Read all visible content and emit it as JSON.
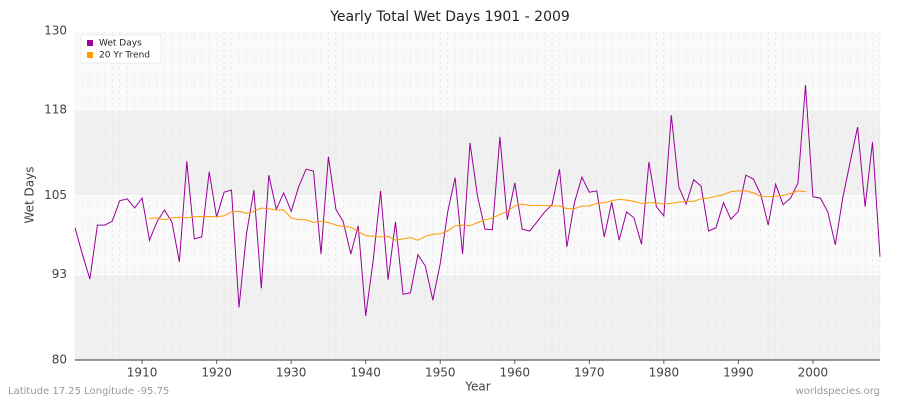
{
  "chart_data": {
    "type": "line",
    "title": "Yearly Total Wet Days 1901 - 2009",
    "x_label": "Year",
    "y_label": "Wet Days",
    "footer_left": "Latitude 17.25 Longitude -95.75",
    "footer_right": "worldspecies.org",
    "x": [
      1901,
      1902,
      1903,
      1904,
      1905,
      1906,
      1907,
      1908,
      1909,
      1910,
      1911,
      1912,
      1913,
      1914,
      1915,
      1916,
      1917,
      1918,
      1919,
      1920,
      1921,
      1922,
      1923,
      1924,
      1925,
      1926,
      1927,
      1928,
      1929,
      1930,
      1931,
      1932,
      1933,
      1934,
      1935,
      1936,
      1937,
      1938,
      1939,
      1940,
      1941,
      1942,
      1943,
      1944,
      1945,
      1946,
      1947,
      1948,
      1949,
      1950,
      1951,
      1952,
      1953,
      1954,
      1955,
      1956,
      1957,
      1958,
      1959,
      1960,
      1961,
      1962,
      1963,
      1964,
      1965,
      1966,
      1967,
      1968,
      1969,
      1970,
      1971,
      1972,
      1973,
      1974,
      1975,
      1976,
      1977,
      1978,
      1979,
      1980,
      1981,
      1982,
      1983,
      1984,
      1985,
      1986,
      1987,
      1988,
      1989,
      1990,
      1991,
      1992,
      1993,
      1994,
      1995,
      1996,
      1997,
      1998,
      1999,
      2000,
      2001,
      2002,
      2003,
      2004,
      2005,
      2006,
      2007,
      2008,
      2009
    ],
    "series": [
      {
        "name": "Wet Days",
        "color": "#990099",
        "values": [
          100.1,
          96,
          92.3,
          100.5,
          100.5,
          101.1,
          104.2,
          104.5,
          103.1,
          104.6,
          98.2,
          101,
          102.8,
          101,
          94.9,
          110.2,
          98.4,
          98.7,
          108.6,
          101.7,
          105.5,
          105.8,
          88,
          99.1,
          105.8,
          90.9,
          108.1,
          102.9,
          105.4,
          102.6,
          106.3,
          109,
          108.7,
          96.1,
          110.9,
          102.9,
          101,
          96.1,
          100.4,
          86.7,
          95,
          105.7,
          92.2,
          101,
          90,
          90.2,
          96,
          94.3,
          89.1,
          94.6,
          102.5,
          107.7,
          96.1,
          113,
          104.9,
          99.9,
          99.8,
          113.9,
          101.3,
          106.9,
          99.9,
          99.6,
          101,
          102.5,
          103.6,
          109,
          97.2,
          103.9,
          107.8,
          105.5,
          105.7,
          98.7,
          104,
          98.2,
          102.5,
          101.6,
          97.6,
          110.1,
          103.3,
          101.9,
          117.2,
          106.3,
          103.7,
          107.4,
          106.4,
          99.6,
          100.1,
          103.9,
          101.4,
          102.6,
          108.1,
          107.5,
          105.2,
          100.5,
          106.7,
          103.6,
          104.6,
          106.9,
          121.8,
          104.8,
          104.6,
          102.5,
          97.5,
          104.6,
          110.1,
          115.4,
          103.3,
          113.1,
          95.7
        ]
      },
      {
        "name": "20 Yr Trend",
        "color": "#ff9900",
        "values": [
          null,
          null,
          null,
          null,
          null,
          null,
          null,
          null,
          null,
          null,
          101.5,
          101.6,
          101.3,
          101.6,
          101.7,
          101.6,
          101.8,
          101.8,
          101.8,
          101.8,
          101.9,
          102.5,
          102.6,
          102.3,
          102.6,
          103.1,
          103,
          102.8,
          102.8,
          101.6,
          101.3,
          101.3,
          100.9,
          101.1,
          100.9,
          100.5,
          100.3,
          100.2,
          99.5,
          98.9,
          98.8,
          98.7,
          98.8,
          98.2,
          98.4,
          98.6,
          98.2,
          98.8,
          99.1,
          99.2,
          99.6,
          100.4,
          100.5,
          100.4,
          100.9,
          101.3,
          101.6,
          102.1,
          102.6,
          103.4,
          103.7,
          103.5,
          103.5,
          103.5,
          103.4,
          103.4,
          103,
          103,
          103.4,
          103.4,
          103.8,
          103.9,
          104.2,
          104.4,
          104.3,
          104.1,
          103.8,
          103.9,
          103.9,
          103.7,
          103.8,
          104,
          104.1,
          104.1,
          104.5,
          104.6,
          104.9,
          105.1,
          105.6,
          105.7,
          105.7,
          105.4,
          104.9,
          104.8,
          104.9,
          105,
          105.3,
          105.7,
          105.6,
          null,
          null,
          null,
          null,
          null,
          null,
          null,
          null,
          null,
          null
        ]
      }
    ],
    "xlim": [
      1901,
      2009
    ],
    "xticks": [
      1910,
      1920,
      1930,
      1940,
      1950,
      1960,
      1970,
      1980,
      1990,
      2000
    ],
    "ylim": [
      80,
      130
    ],
    "yticks": [
      80,
      93,
      105,
      118,
      130
    ],
    "grid": true,
    "legend": "top-left"
  }
}
